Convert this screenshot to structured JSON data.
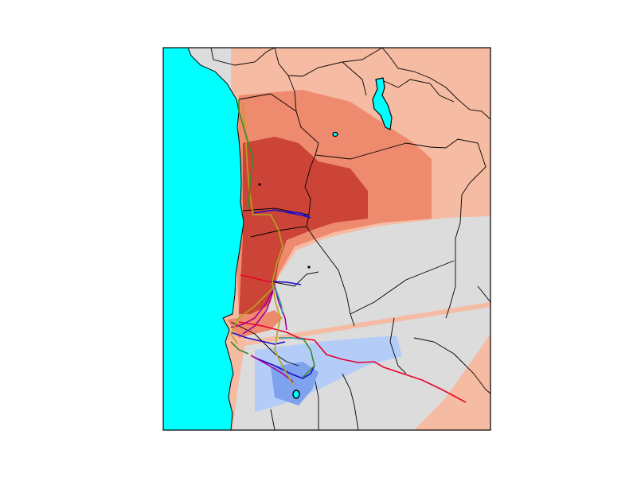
{
  "colors": {
    "ocean": "#00ffff",
    "land_background": "#dcdcdc",
    "level_low_positive": "#f6bba3",
    "level_mid_positive": "#ee8a6d",
    "level_high_positive": "#cc4438",
    "level_low_negative": "#b4ccf8",
    "level_mid_negative": "#7fa2ee",
    "lakes": "#00ffff",
    "borders": "#000000",
    "frame": "#000000"
  },
  "tracks": [
    {
      "color": "#e8002a"
    },
    {
      "color": "#1a0ccf"
    },
    {
      "color": "#a8009a"
    },
    {
      "color": "#b4a51c"
    },
    {
      "color": "#3a8a2a"
    },
    {
      "color": "#1e9a9a"
    }
  ]
}
